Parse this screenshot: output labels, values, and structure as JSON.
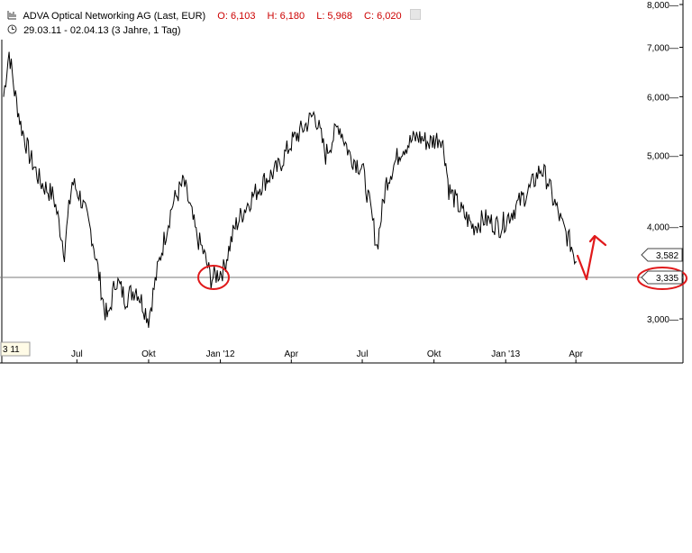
{
  "header": {
    "title": "ADVA Optical Networking AG (Last, EUR)",
    "open": "O: 6,103",
    "high": "H: 6,180",
    "low": "L: 5,968",
    "close": "C: 6,020",
    "range": "29.03.11 - 02.04.13 (3 Jahre, 1 Tag)"
  },
  "colors": {
    "price": "#000000",
    "annotation": "#e0191b",
    "accent": "#cc0000",
    "axis": "#000000",
    "refline": "#555555"
  },
  "chart_data": {
    "type": "line",
    "x_tick_labels": [
      "Jul",
      "Okt",
      "Jan '12",
      "Apr",
      "Jul",
      "Okt",
      "Jan '13",
      "Apr"
    ],
    "y_tick_labels": [
      "8,000",
      "7,000",
      "6,000",
      "5,000",
      "4,000",
      "3,000"
    ],
    "y_scale": "log",
    "ylim": [
      2.75,
      8.0
    ],
    "x": [
      "2011-03-29",
      "2011-04-05",
      "2011-04-12",
      "2011-04-20",
      "2011-05-01",
      "2011-05-15",
      "2011-06-01",
      "2011-06-15",
      "2011-06-25",
      "2011-07-05",
      "2011-07-20",
      "2011-08-05",
      "2011-08-10",
      "2011-08-20",
      "2011-09-01",
      "2011-09-15",
      "2011-10-01",
      "2011-10-15",
      "2011-11-01",
      "2011-11-15",
      "2011-12-01",
      "2011-12-10",
      "2011-12-20",
      "2012-01-05",
      "2012-01-20",
      "2012-02-05",
      "2012-02-25",
      "2012-03-15",
      "2012-04-01",
      "2012-04-20",
      "2012-05-01",
      "2012-05-15",
      "2012-06-01",
      "2012-06-15",
      "2012-07-01",
      "2012-07-10",
      "2012-07-20",
      "2012-08-01",
      "2012-08-20",
      "2012-09-10",
      "2012-09-25",
      "2012-10-10",
      "2012-10-15",
      "2012-10-20",
      "2012-11-05",
      "2012-11-20",
      "2012-12-05",
      "2012-12-25",
      "2013-01-10",
      "2013-02-01",
      "2013-02-15",
      "2013-02-25",
      "2013-03-01",
      "2013-03-05",
      "2013-03-15",
      "2013-03-25",
      "2013-04-02"
    ],
    "values": [
      6.0,
      6.9,
      6.1,
      5.5,
      5.0,
      4.6,
      4.4,
      3.7,
      4.6,
      4.4,
      3.9,
      3.1,
      3.0,
      3.4,
      3.2,
      3.3,
      3.0,
      3.6,
      4.3,
      4.6,
      3.9,
      3.7,
      3.4,
      3.5,
      4.0,
      4.3,
      4.6,
      4.8,
      5.2,
      5.5,
      5.7,
      5.0,
      5.5,
      5.0,
      4.8,
      4.3,
      3.75,
      4.6,
      5.1,
      5.3,
      5.2,
      5.3,
      5.0,
      4.5,
      4.2,
      4.0,
      4.1,
      4.0,
      4.2,
      4.5,
      4.8,
      4.6,
      4.4,
      4.3,
      4.0,
      3.8,
      3.582
    ],
    "last_value_label": "3,582",
    "reference_line_label": "3,335",
    "reference_line_value": 3.335,
    "date_box_label": "3 11"
  }
}
